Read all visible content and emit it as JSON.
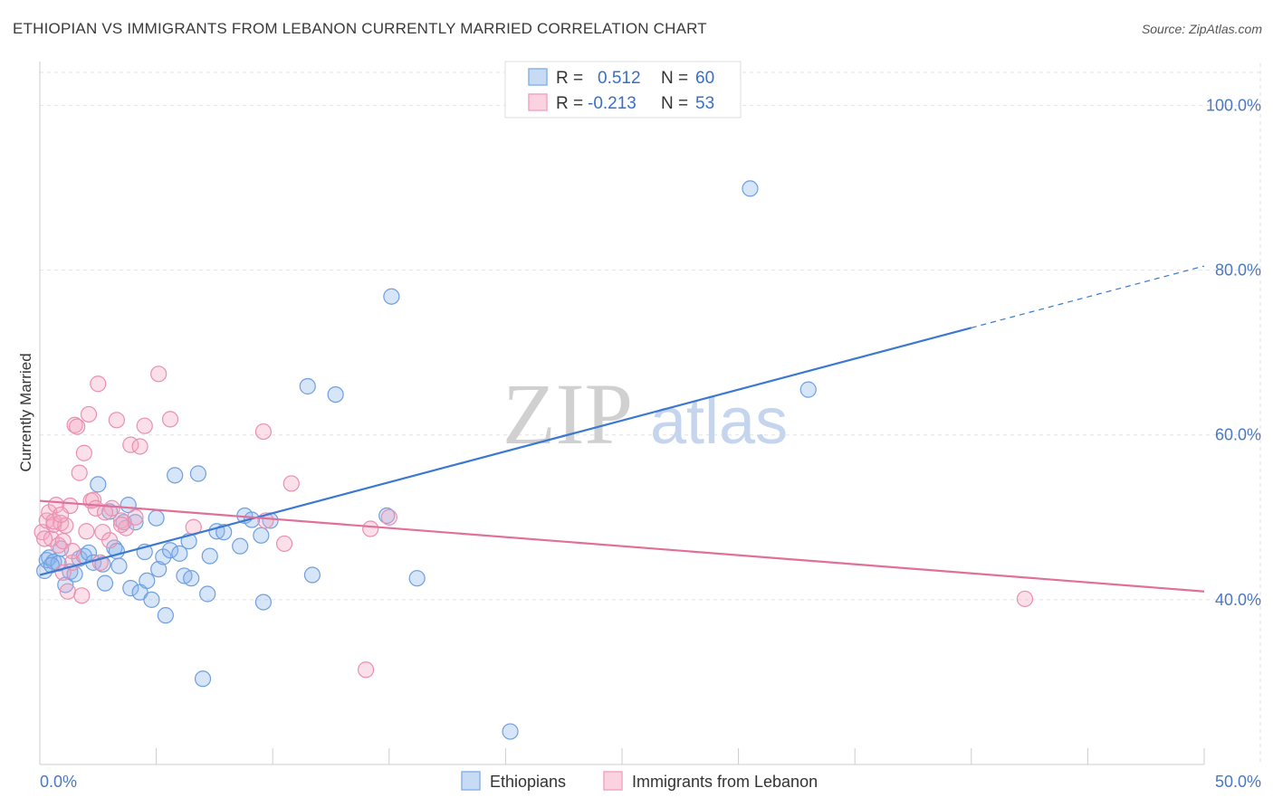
{
  "header": {
    "title": "ETHIOPIAN VS IMMIGRANTS FROM LEBANON CURRENTLY MARRIED CORRELATION CHART",
    "source": "Source: ZipAtlas.com"
  },
  "watermark": {
    "zip": "ZIP",
    "atlas": "atlas"
  },
  "legend_top": {
    "rows": [
      {
        "r_label": "R =",
        "r_value": "0.512",
        "n_label": "N =",
        "n_value": "60",
        "color": "#8ab4ea"
      },
      {
        "r_label": "R =",
        "r_value": "-0.213",
        "n_label": "N =",
        "n_value": "53",
        "color": "#f4a6c0"
      }
    ]
  },
  "legend_bottom": {
    "items": [
      {
        "label": "Ethiopians",
        "color": "#8ab4ea"
      },
      {
        "label": "Immigrants from Lebanon",
        "color": "#f4a6c0"
      }
    ]
  },
  "chart_data": {
    "type": "scatter",
    "title": "ETHIOPIAN VS IMMIGRANTS FROM LEBANON CURRENTLY MARRIED CORRELATION CHART",
    "xlabel": "",
    "ylabel": "Currently Married",
    "xlim": [
      0,
      50
    ],
    "ylim": [
      20,
      104
    ],
    "x_tick_labels": [
      "0.0%",
      "50.0%"
    ],
    "y_ticks": [
      40,
      60,
      80,
      100
    ],
    "y_tick_labels": [
      "40.0%",
      "60.0%",
      "80.0%",
      "100.0%"
    ],
    "grid": true,
    "colors": {
      "ethiopians": "#3a78d2",
      "lebanon": "#e0709a"
    },
    "series": [
      {
        "name": "Ethiopians",
        "color": "#8ab4ea",
        "points": [
          [
            0.2,
            43.5
          ],
          [
            0.3,
            44.8
          ],
          [
            0.4,
            45.1
          ],
          [
            0.6,
            44.6
          ],
          [
            0.8,
            44.4
          ],
          [
            0.9,
            46.2
          ],
          [
            1.1,
            41.8
          ],
          [
            1.3,
            43.4
          ],
          [
            1.5,
            43.1
          ],
          [
            1.7,
            45.0
          ],
          [
            1.9,
            45.3
          ],
          [
            2.1,
            45.7
          ],
          [
            2.3,
            44.5
          ],
          [
            2.5,
            54.0
          ],
          [
            2.7,
            44.3
          ],
          [
            2.8,
            42.0
          ],
          [
            3.0,
            50.7
          ],
          [
            3.2,
            46.3
          ],
          [
            3.4,
            44.1
          ],
          [
            3.6,
            49.4
          ],
          [
            3.8,
            51.5
          ],
          [
            3.9,
            41.4
          ],
          [
            4.1,
            49.4
          ],
          [
            4.3,
            40.9
          ],
          [
            4.5,
            45.8
          ],
          [
            4.6,
            42.3
          ],
          [
            4.8,
            40.0
          ],
          [
            5.0,
            49.9
          ],
          [
            5.1,
            43.7
          ],
          [
            5.3,
            45.2
          ],
          [
            5.4,
            38.1
          ],
          [
            5.6,
            46.0
          ],
          [
            5.8,
            55.1
          ],
          [
            6.0,
            45.6
          ],
          [
            6.2,
            42.9
          ],
          [
            6.4,
            47.1
          ],
          [
            6.5,
            42.6
          ],
          [
            6.8,
            55.3
          ],
          [
            7.0,
            30.4
          ],
          [
            7.2,
            40.7
          ],
          [
            7.3,
            45.3
          ],
          [
            7.6,
            48.3
          ],
          [
            7.9,
            48.2
          ],
          [
            8.6,
            46.5
          ],
          [
            8.8,
            50.2
          ],
          [
            9.1,
            49.7
          ],
          [
            9.5,
            47.8
          ],
          [
            9.6,
            39.7
          ],
          [
            9.9,
            49.6
          ],
          [
            11.5,
            65.9
          ],
          [
            11.7,
            43.0
          ],
          [
            12.7,
            64.9
          ],
          [
            14.9,
            50.2
          ],
          [
            15.1,
            76.8
          ],
          [
            16.2,
            42.6
          ],
          [
            20.2,
            24.0
          ],
          [
            30.5,
            89.9
          ],
          [
            33.0,
            65.5
          ],
          [
            0.5,
            44.2
          ],
          [
            3.3,
            45.9
          ]
        ]
      },
      {
        "name": "Immigrants from Lebanon",
        "color": "#f4a6c0",
        "points": [
          [
            0.1,
            48.2
          ],
          [
            0.3,
            49.6
          ],
          [
            0.4,
            50.6
          ],
          [
            0.5,
            47.4
          ],
          [
            0.6,
            49.1
          ],
          [
            0.7,
            51.5
          ],
          [
            0.8,
            46.6
          ],
          [
            0.9,
            49.3
          ],
          [
            1.0,
            47.1
          ],
          [
            1.1,
            49.0
          ],
          [
            1.2,
            41.0
          ],
          [
            1.3,
            51.4
          ],
          [
            1.4,
            44.5
          ],
          [
            1.5,
            61.2
          ],
          [
            1.6,
            61.0
          ],
          [
            1.7,
            55.4
          ],
          [
            1.8,
            40.5
          ],
          [
            1.9,
            57.8
          ],
          [
            2.0,
            48.3
          ],
          [
            2.1,
            62.5
          ],
          [
            2.2,
            52.0
          ],
          [
            2.3,
            52.1
          ],
          [
            2.5,
            66.2
          ],
          [
            2.6,
            44.5
          ],
          [
            2.7,
            48.2
          ],
          [
            3.0,
            47.2
          ],
          [
            3.1,
            51.1
          ],
          [
            3.3,
            61.8
          ],
          [
            3.5,
            49.6
          ],
          [
            3.7,
            48.7
          ],
          [
            3.9,
            58.8
          ],
          [
            4.1,
            50.0
          ],
          [
            4.3,
            58.6
          ],
          [
            4.5,
            61.1
          ],
          [
            5.1,
            67.4
          ],
          [
            5.6,
            61.9
          ],
          [
            6.6,
            48.8
          ],
          [
            9.6,
            60.4
          ],
          [
            9.7,
            49.6
          ],
          [
            10.5,
            46.8
          ],
          [
            10.8,
            54.1
          ],
          [
            14.0,
            31.5
          ],
          [
            14.2,
            48.6
          ],
          [
            15.0,
            50.0
          ],
          [
            42.3,
            40.1
          ],
          [
            0.2,
            47.4
          ],
          [
            0.6,
            49.5
          ],
          [
            1.0,
            43.3
          ],
          [
            1.4,
            45.9
          ],
          [
            2.4,
            51.1
          ],
          [
            3.5,
            49.1
          ],
          [
            0.9,
            50.3
          ],
          [
            2.8,
            50.6
          ]
        ]
      }
    ],
    "trend_lines": [
      {
        "series": "Ethiopians",
        "x0": 0,
        "y0": 43.0,
        "x1": 40,
        "y1": 73.0,
        "dashed_to_x": 50,
        "dashed_to_y": 80.5
      },
      {
        "series": "Immigrants from Lebanon",
        "x0": 0,
        "y0": 52.0,
        "x1": 50,
        "y1": 41.0
      }
    ]
  }
}
